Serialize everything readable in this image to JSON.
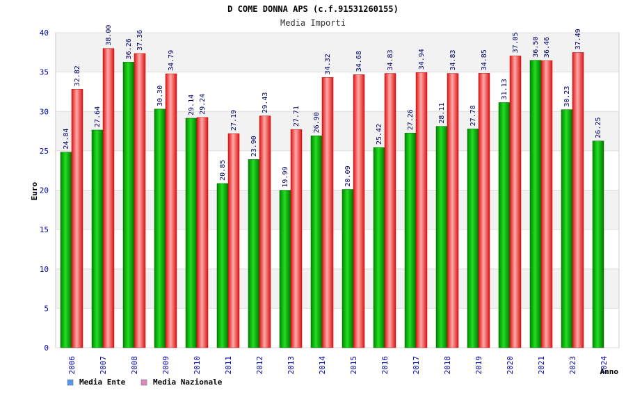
{
  "chart_data": {
    "type": "bar",
    "title": "D COME DONNA APS (c.f.91531260155)",
    "subtitle": "Media Importi",
    "xlabel": "Anno",
    "ylabel": "Euro",
    "ylim": [
      0,
      40
    ],
    "yticks": [
      0,
      5,
      10,
      15,
      20,
      25,
      30,
      35,
      40
    ],
    "grid": true,
    "legend_position": "bottom-left",
    "categories": [
      "2006",
      "2007",
      "2008",
      "2009",
      "2010",
      "2011",
      "2012",
      "2013",
      "2014",
      "2015",
      "2016",
      "2017",
      "2018",
      "2019",
      "2020",
      "2021",
      "2023",
      "2024"
    ],
    "series": [
      {
        "name": "Media Ente",
        "color": "#00aa00",
        "legend_color": "#5599ee",
        "values": [
          24.84,
          27.64,
          36.26,
          30.3,
          29.14,
          20.85,
          23.9,
          19.99,
          26.9,
          20.09,
          25.42,
          27.26,
          28.11,
          27.78,
          31.13,
          36.5,
          30.23,
          26.25
        ],
        "labels": [
          "24.84",
          "27.64",
          "36.26",
          "30.30",
          "29.14",
          "20.85",
          "23.90",
          "19.99",
          "26.90",
          "20.09",
          "25.42",
          "27.26",
          "28.11",
          "27.78",
          "31.13",
          "36.50",
          "30.23",
          "26.25"
        ]
      },
      {
        "name": "Media Nazionale",
        "color": "#ee2222",
        "legend_color": "#dd88bb",
        "values": [
          32.82,
          38.0,
          37.36,
          34.79,
          29.24,
          27.19,
          29.43,
          27.71,
          34.32,
          34.68,
          34.83,
          34.94,
          34.83,
          34.85,
          37.05,
          36.46,
          37.49,
          null
        ],
        "labels": [
          "32.82",
          "38.00",
          "37.36",
          "34.79",
          "29.24",
          "27.19",
          "29.43",
          "27.71",
          "34.32",
          "34.68",
          "34.83",
          "34.94",
          "34.83",
          "34.85",
          "37.05",
          "36.46",
          "37.49",
          ""
        ]
      }
    ]
  }
}
